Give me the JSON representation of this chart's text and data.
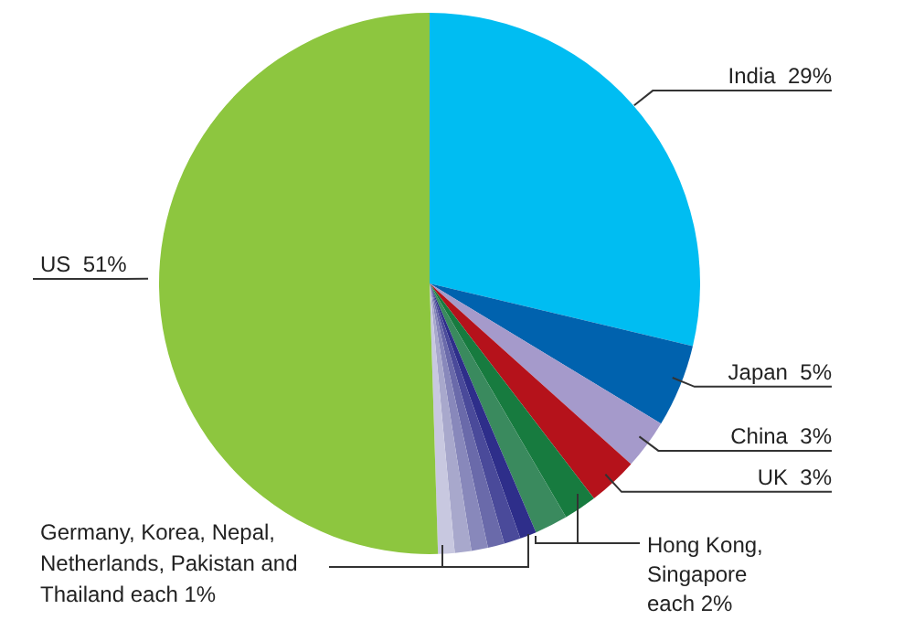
{
  "chart_data": {
    "type": "pie",
    "categories": [
      "India",
      "Japan",
      "China",
      "UK",
      null,
      null,
      null,
      null,
      null,
      null,
      null,
      null,
      "US"
    ],
    "values": [
      29,
      5,
      3,
      3,
      2,
      2,
      1,
      1,
      1,
      1,
      1,
      1,
      51
    ],
    "value_labels": [
      "29%",
      "5%",
      "3%",
      "3%",
      null,
      null,
      null,
      null,
      null,
      null,
      null,
      null,
      "51%"
    ],
    "colors": [
      "#00bdf2",
      "#0062ae",
      "#a59acb",
      "#b5121b",
      "#177b3f",
      "#3a8a5e",
      "#2e2e8a",
      "#4a4a9a",
      "#6a6aaa",
      "#8888bb",
      "#a8a8cc",
      "#c8c8e0",
      "#8dc63f"
    ],
    "annotations": [
      "Hong Kong, Singapore each 2%",
      "Germany, Korea, Nepal, Netherlands, Pakistan and Thailand each 1%"
    ]
  }
}
